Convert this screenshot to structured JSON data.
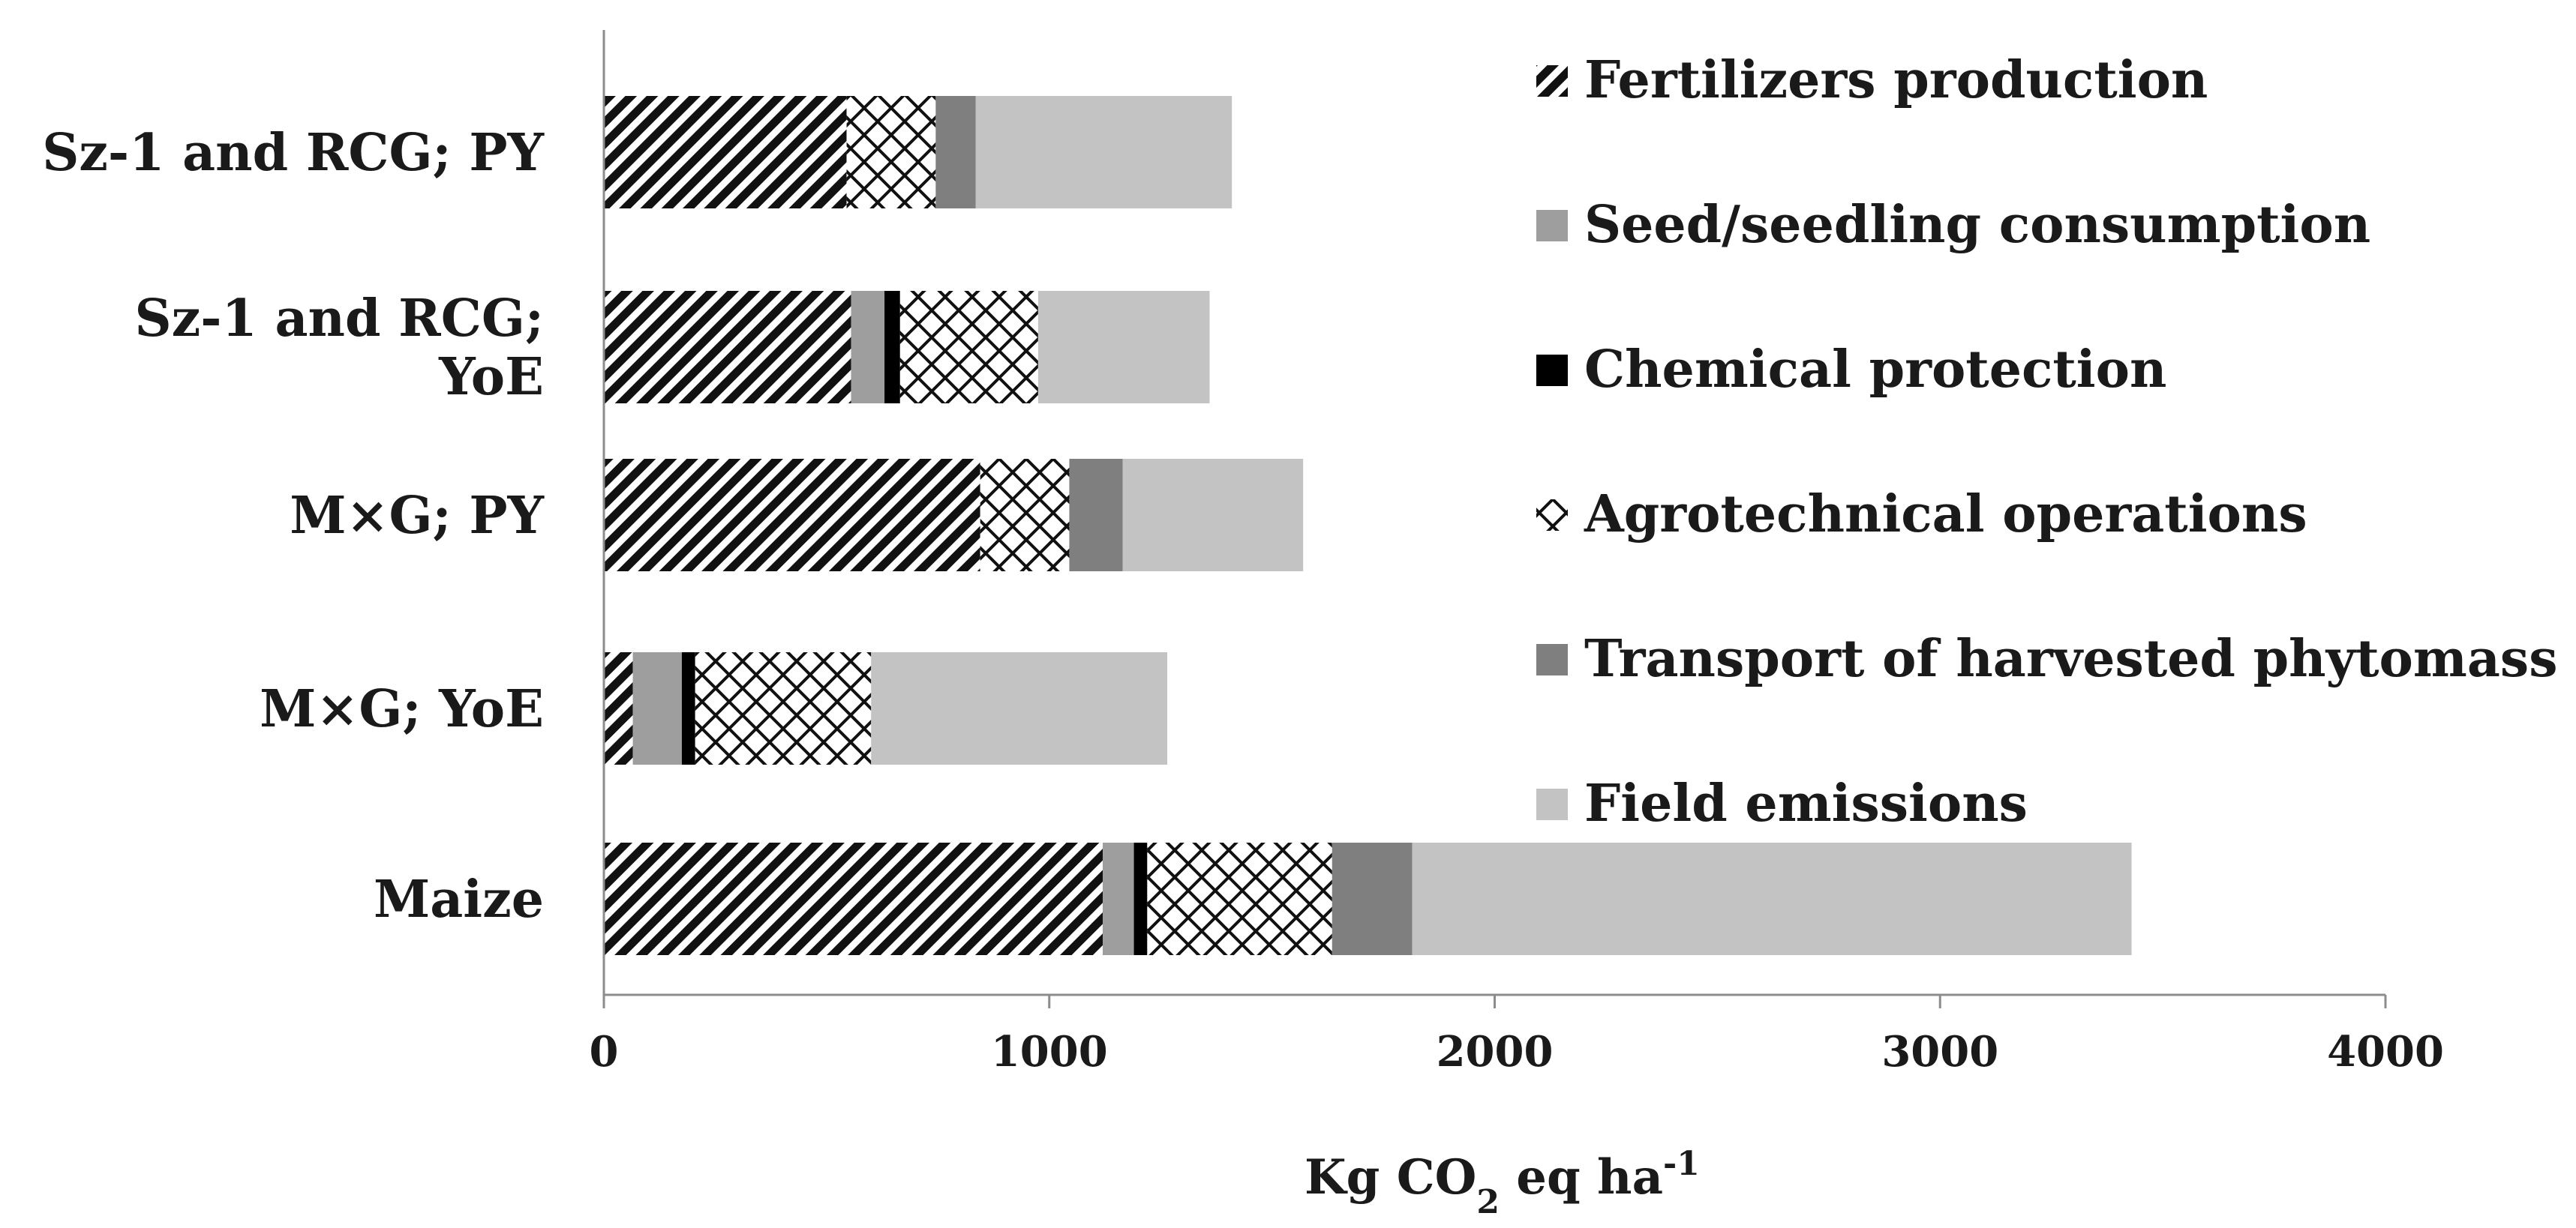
{
  "chart_data": {
    "type": "bar",
    "orientation": "horizontal",
    "stacked": true,
    "title": "",
    "xlabel_parts": [
      "Kg CO",
      "2",
      " eq ha",
      "-1"
    ],
    "ylabel": "",
    "xlim": [
      0,
      4000
    ],
    "xticks": [
      0,
      1000,
      2000,
      3000,
      4000
    ],
    "tick_labels": [
      "0",
      "1000",
      "2000",
      "3000",
      "4000"
    ],
    "grid": false,
    "legend_position": "right",
    "categories": [
      [
        "Sz-1 and RCG; PY"
      ],
      [
        "Sz-1 and RCG;",
        "YoE"
      ],
      [
        "M×G; PY"
      ],
      [
        "M×G; YoE"
      ],
      [
        "Maize"
      ]
    ],
    "series": [
      {
        "name": "Fertilizers production",
        "pattern": "hatch",
        "color": "#111111",
        "values": [
          545,
          555,
          845,
          65,
          1120
        ]
      },
      {
        "name": "Seed/seedling consumption",
        "pattern": "solid",
        "color": "#9e9e9e",
        "values": [
          0,
          75,
          0,
          110,
          70
        ]
      },
      {
        "name": "Chemical protection",
        "pattern": "solid",
        "color": "#000000",
        "values": [
          0,
          35,
          0,
          30,
          30
        ]
      },
      {
        "name": "Agrotechnical operations",
        "pattern": "cross",
        "color": "#111111",
        "values": [
          200,
          310,
          200,
          395,
          415
        ]
      },
      {
        "name": "Transport of harvested phytomass",
        "pattern": "solid",
        "color": "#7f7f7f",
        "values": [
          90,
          0,
          120,
          0,
          180
        ]
      },
      {
        "name": "Field emissions",
        "pattern": "solid",
        "color": "#c3c3c3",
        "values": [
          575,
          385,
          405,
          665,
          1615
        ]
      }
    ]
  }
}
